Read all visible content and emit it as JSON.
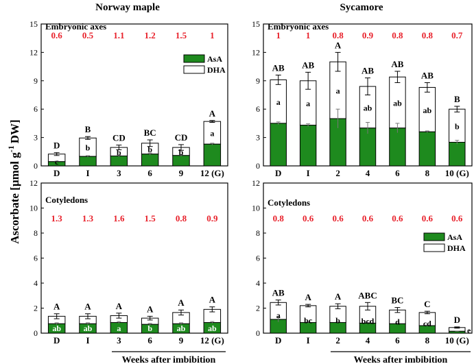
{
  "figure": {
    "ylabel": "Ascorbate [µmol g",
    "ylabel_exp": "-1",
    "ylabel_tail": "DW]",
    "bottom_label_left": "Weeks after imbibition",
    "bottom_label_right": "Weeks after imbibition",
    "colors": {
      "asa": "#1e8a1e",
      "dha": "#ffffff",
      "ratio": "#e8202a",
      "axis": "#000000"
    }
  },
  "chart_data": [
    {
      "id": "maple-axes",
      "type": "bar",
      "stacked": true,
      "column_title": "Norway maple",
      "panel_label": "Embryonic axes",
      "categories": [
        "D",
        "I",
        "3",
        "6",
        "9",
        "12 (G)"
      ],
      "series": [
        {
          "name": "AsA",
          "values": [
            0.45,
            1.0,
            1.05,
            1.25,
            1.1,
            2.3
          ],
          "errors": [
            0.05,
            0.08,
            0.1,
            0.12,
            0.1,
            0.1
          ]
        },
        {
          "name": "DHA",
          "values": [
            0.8,
            1.95,
            0.9,
            1.15,
            0.85,
            2.4
          ]
        }
      ],
      "total_errors": [
        0.15,
        0.15,
        0.25,
        0.35,
        0.3,
        0.1
      ],
      "inner_labels": [
        "c",
        "b",
        "b",
        "b",
        "b",
        "a"
      ],
      "top_labels": [
        "D",
        "B",
        "CD",
        "BC",
        "CD",
        "A"
      ],
      "ratios": [
        "0.6",
        "0.5",
        "1.1",
        "1.2",
        "1.5",
        "1"
      ],
      "yticks": [
        "0",
        "3",
        "6",
        "9",
        "12",
        "15"
      ],
      "ylim": [
        0,
        15
      ],
      "legend": [
        "AsA",
        "DHA"
      ]
    },
    {
      "id": "sycamore-axes",
      "type": "bar",
      "stacked": true,
      "column_title": "Sycamore",
      "panel_label": "Embryonic axes",
      "categories": [
        "D",
        "I",
        "2",
        "4",
        "6",
        "8",
        "10 (G)"
      ],
      "series": [
        {
          "name": "AsA",
          "values": [
            4.5,
            4.3,
            5.0,
            4.0,
            4.0,
            3.6,
            2.5
          ],
          "errors": [
            0.15,
            0.15,
            1.0,
            0.6,
            0.5,
            0.1,
            0.2
          ]
        },
        {
          "name": "DHA",
          "values": [
            4.6,
            4.7,
            6.0,
            4.4,
            5.4,
            4.7,
            3.5
          ]
        }
      ],
      "total_errors": [
        0.5,
        0.9,
        1.0,
        0.9,
        0.6,
        0.5,
        0.3
      ],
      "inner_labels": [
        "a",
        "a",
        "a",
        "ab",
        "ab",
        "ab",
        "b"
      ],
      "top_labels": [
        "AB",
        "AB",
        "A",
        "AB",
        "AB",
        "AB",
        "B"
      ],
      "ratios": [
        "1",
        "1",
        "0.8",
        "0.9",
        "0.8",
        "0.8",
        "0.7"
      ],
      "yticks": [
        "0",
        "3",
        "6",
        "9",
        "12",
        "15"
      ],
      "ylim": [
        0,
        15
      ]
    },
    {
      "id": "maple-cotyledons",
      "type": "bar",
      "stacked": true,
      "panel_label": "Cotyledons",
      "categories": [
        "D",
        "I",
        "3",
        "6",
        "9",
        "12 (G)"
      ],
      "series": [
        {
          "name": "AsA",
          "values": [
            0.75,
            0.75,
            0.85,
            0.7,
            0.75,
            0.85
          ],
          "errors": [
            0.08,
            0.08,
            0.08,
            0.08,
            0.08,
            0.08
          ]
        },
        {
          "name": "DHA",
          "values": [
            0.6,
            0.6,
            0.55,
            0.5,
            0.9,
            1.05
          ]
        }
      ],
      "total_errors": [
        0.2,
        0.2,
        0.2,
        0.15,
        0.2,
        0.2
      ],
      "inner_labels": [
        "ab",
        "ab",
        "a",
        "b",
        "ab",
        "ab"
      ],
      "top_labels": [
        "A",
        "A",
        "A",
        "A",
        "A",
        "A"
      ],
      "ratios": [
        "1.3",
        "1.3",
        "1.6",
        "1.5",
        "0.8",
        "0.9"
      ],
      "yticks": [
        "0",
        "2",
        "4",
        "6",
        "8",
        "10",
        "12"
      ],
      "ylim": [
        0,
        12
      ]
    },
    {
      "id": "sycamore-cotyledons",
      "type": "bar",
      "stacked": true,
      "panel_label": "Cotyledons",
      "categories": [
        "D",
        "I",
        "2",
        "4",
        "6",
        "8",
        "10 (G)"
      ],
      "series": [
        {
          "name": "AsA",
          "values": [
            1.1,
            0.85,
            0.85,
            0.8,
            0.75,
            0.6,
            0.15
          ],
          "errors": [
            0.2,
            0.05,
            0.05,
            0.05,
            0.05,
            0.05,
            0.02
          ]
        },
        {
          "name": "DHA",
          "values": [
            1.35,
            1.35,
            1.3,
            1.35,
            1.1,
            1.05,
            0.3
          ]
        }
      ],
      "total_errors": [
        0.2,
        0.1,
        0.2,
        0.3,
        0.2,
        0.1,
        0.05
      ],
      "inner_labels": [
        "a",
        "bc",
        "b",
        "bcd",
        "d",
        "cd",
        "e"
      ],
      "top_labels": [
        "AB",
        "A",
        "A",
        "ABC",
        "BC",
        "C",
        "D"
      ],
      "ratios": [
        "0.8",
        "0.6",
        "0.6",
        "0.6",
        "0.6",
        "0.6",
        "0.6"
      ],
      "yticks": [
        "0",
        "2",
        "4",
        "6",
        "8",
        "10",
        "12"
      ],
      "ylim": [
        0,
        12
      ],
      "legend": [
        "AsA",
        "DHA"
      ]
    }
  ]
}
